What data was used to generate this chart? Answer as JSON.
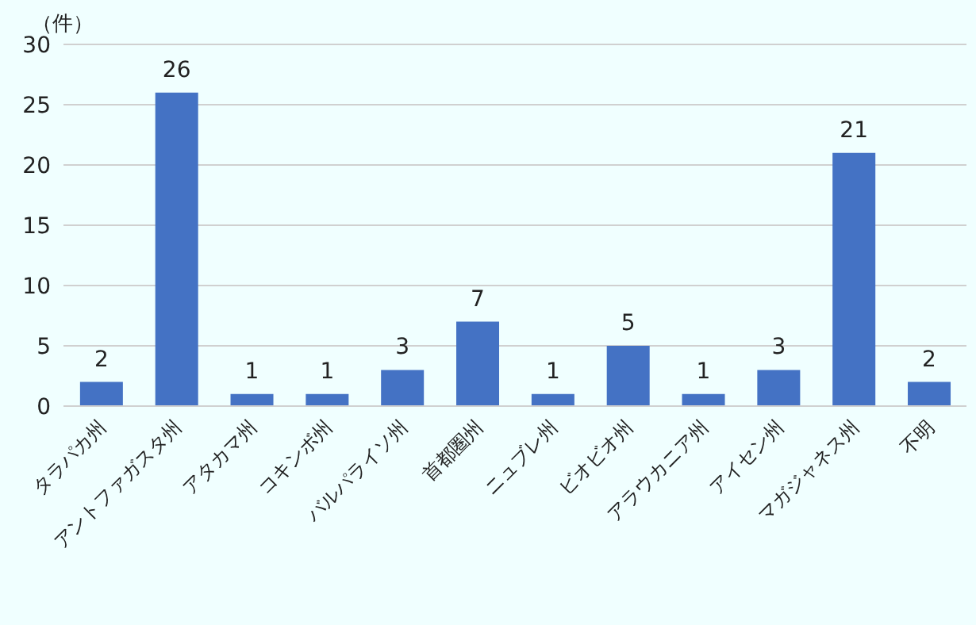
{
  "chart_data": {
    "type": "bar",
    "ylabel": "（件）",
    "categories": [
      "タラパカ州",
      "アントファガスタ州",
      "アタカマ州",
      "コキンボ州",
      "バルパライソ州",
      "首都圏州",
      "ニュブレ州",
      "ビオビオ州",
      "アラウカニア州",
      "アイセン州",
      "マガジャネス州",
      "不明"
    ],
    "values": [
      2,
      26,
      1,
      1,
      3,
      7,
      1,
      5,
      1,
      3,
      21,
      2
    ],
    "color": "#4472c4",
    "ylim": [
      0,
      30
    ],
    "yticks": [
      0,
      5,
      10,
      15,
      20,
      25,
      30
    ],
    "grid": "y",
    "data_labels": true
  }
}
